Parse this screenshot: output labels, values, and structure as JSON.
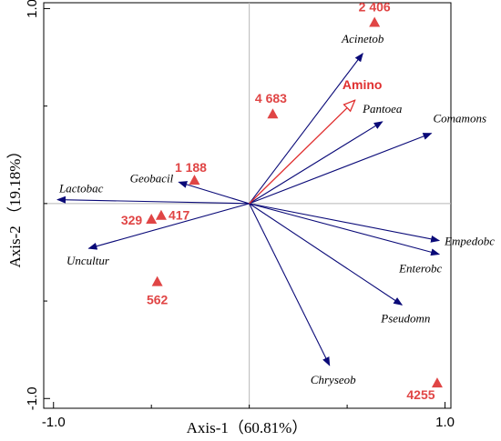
{
  "chart_data": {
    "type": "scatter",
    "subtype": "RDA biplot",
    "xlabel": "Axis-1（60.81%）",
    "ylabel": "Axis-2 （19.18%）",
    "xlim": [
      -1.05,
      1.03
    ],
    "ylim": [
      -1.05,
      1.03
    ],
    "x_ticks": [
      {
        "value": -1.0,
        "label": "-1.0"
      },
      {
        "value": 1.0,
        "label": "1.0"
      }
    ],
    "y_ticks": [
      {
        "value": 1.0,
        "label": "1.0"
      },
      {
        "value": -1.0,
        "label": "-1.0"
      }
    ],
    "grid_lines": [
      0
    ],
    "species_color": "#0a0a78",
    "env_color": "#e03030",
    "sample_color": "#e04545",
    "samples": [
      {
        "label": "2 406",
        "x": 0.64,
        "y": 0.93
      },
      {
        "label": "4 683",
        "x": 0.12,
        "y": 0.46
      },
      {
        "label": "1 188",
        "x": -0.28,
        "y": 0.12
      },
      {
        "label": "417",
        "x": -0.45,
        "y": -0.06
      },
      {
        "label": "329",
        "x": -0.5,
        "y": -0.08
      },
      {
        "label": "562",
        "x": -0.47,
        "y": -0.4
      },
      {
        "label": "4255",
        "x": 0.96,
        "y": -0.92
      }
    ],
    "species": [
      {
        "label": "Acinetob",
        "x": 0.58,
        "y": 0.77
      },
      {
        "label": "Pantoea",
        "x": 0.68,
        "y": 0.42
      },
      {
        "label": "Comamons",
        "x": 0.93,
        "y": 0.36
      },
      {
        "label": "Geobacil",
        "x": -0.36,
        "y": 0.11
      },
      {
        "label": "Lactobac",
        "x": -0.98,
        "y": 0.02
      },
      {
        "label": "Uncultur",
        "x": -0.82,
        "y": -0.23
      },
      {
        "label": "Empedobc",
        "x": 0.97,
        "y": -0.19
      },
      {
        "label": "Enterobc",
        "x": 0.97,
        "y": -0.26
      },
      {
        "label": "Pseudomn",
        "x": 0.78,
        "y": -0.52
      },
      {
        "label": "Chryseob",
        "x": 0.41,
        "y": -0.83
      }
    ],
    "env": [
      {
        "label": "Amino",
        "x": 0.54,
        "y": 0.53
      }
    ]
  }
}
